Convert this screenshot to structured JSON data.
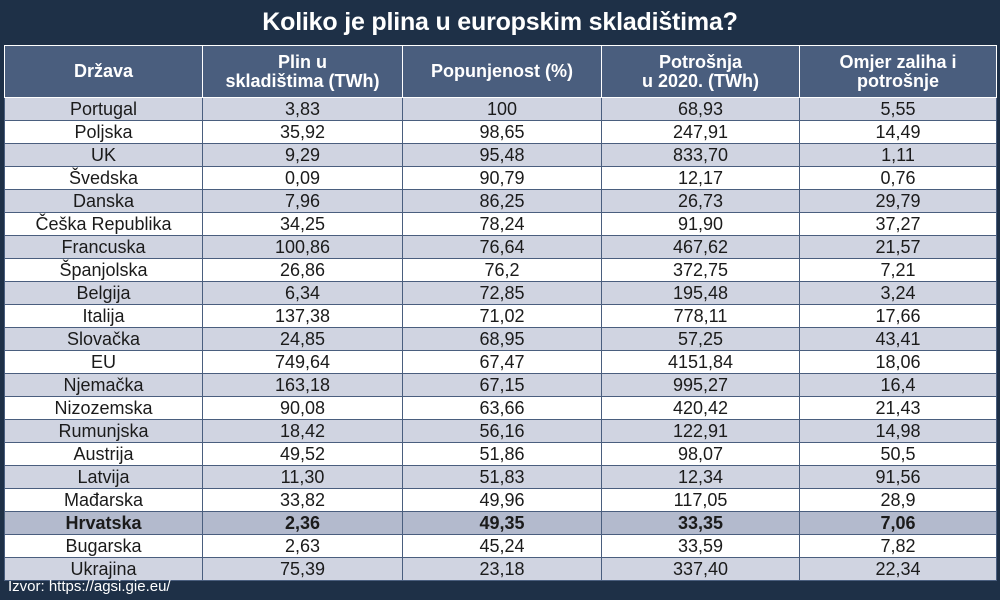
{
  "title": "Koliko je plina u europskim skladištima?",
  "source": "Izvor: https://agsi.gie.eu/",
  "colors": {
    "background": "#1e3047",
    "header": "#4a5e7e",
    "row_alt": "#d0d4e1",
    "row": "#ffffff",
    "highlight": "#b3bacd"
  },
  "chart_data": {
    "type": "table",
    "title": "Koliko je plina u europskim skladištima?",
    "columns": [
      "Država",
      "Plin u\nskladištima (TWh)",
      "Popunjenost (%)",
      "Potrošnja\nu 2020. (TWh)",
      "Omjer zaliha i\npotrošnje"
    ],
    "highlighted_row": "Hrvatska",
    "rows": [
      [
        "Portugal",
        "3,83",
        "100",
        "68,93",
        "5,55"
      ],
      [
        "Poljska",
        "35,92",
        "98,65",
        "247,91",
        "14,49"
      ],
      [
        "UK",
        "9,29",
        "95,48",
        "833,70",
        "1,11"
      ],
      [
        "Švedska",
        "0,09",
        "90,79",
        "12,17",
        "0,76"
      ],
      [
        "Danska",
        "7,96",
        "86,25",
        "26,73",
        "29,79"
      ],
      [
        "Češka Republika",
        "34,25",
        "78,24",
        "91,90",
        "37,27"
      ],
      [
        "Francuska",
        "100,86",
        "76,64",
        "467,62",
        "21,57"
      ],
      [
        "Španjolska",
        "26,86",
        "76,2",
        "372,75",
        "7,21"
      ],
      [
        "Belgija",
        "6,34",
        "72,85",
        "195,48",
        "3,24"
      ],
      [
        "Italija",
        "137,38",
        "71,02",
        "778,11",
        "17,66"
      ],
      [
        "Slovačka",
        "24,85",
        "68,95",
        "57,25",
        "43,41"
      ],
      [
        "EU",
        "749,64",
        "67,47",
        "4151,84",
        "18,06"
      ],
      [
        "Njemačka",
        "163,18",
        "67,15",
        "995,27",
        "16,4"
      ],
      [
        "Nizozemska",
        "90,08",
        "63,66",
        "420,42",
        "21,43"
      ],
      [
        "Rumunjska",
        "18,42",
        "56,16",
        "122,91",
        "14,98"
      ],
      [
        "Austrija",
        "49,52",
        "51,86",
        "98,07",
        "50,5"
      ],
      [
        "Latvija",
        "11,30",
        "51,83",
        "12,34",
        "91,56"
      ],
      [
        "Mađarska",
        "33,82",
        "49,96",
        "117,05",
        "28,9"
      ],
      [
        "Hrvatska",
        "2,36",
        "49,35",
        "33,35",
        "7,06"
      ],
      [
        "Bugarska",
        "2,63",
        "45,24",
        "33,59",
        "7,82"
      ],
      [
        "Ukrajina",
        "75,39",
        "23,18",
        "337,40",
        "22,34"
      ]
    ]
  }
}
